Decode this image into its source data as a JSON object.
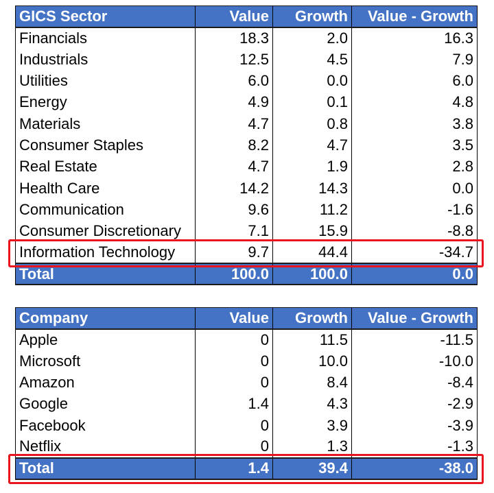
{
  "sector_table": {
    "headers": [
      "GICS Sector",
      "Value",
      "Growth",
      "Value - Growth"
    ],
    "rows": [
      [
        "Financials",
        "18.3",
        "2.0",
        "16.3"
      ],
      [
        "Industrials",
        "12.5",
        "4.5",
        "7.9"
      ],
      [
        "Utilities",
        "6.0",
        "0.0",
        "6.0"
      ],
      [
        "Energy",
        "4.9",
        "0.1",
        "4.8"
      ],
      [
        "Materials",
        "4.7",
        "0.8",
        "3.8"
      ],
      [
        "Consumer Staples",
        "8.2",
        "4.7",
        "3.5"
      ],
      [
        "Real Estate",
        "4.7",
        "1.9",
        "2.8"
      ],
      [
        "Health Care",
        "14.2",
        "14.3",
        "0.0"
      ],
      [
        "Communication",
        "9.6",
        "11.2",
        "-1.6"
      ],
      [
        "Consumer Discretionary",
        "7.1",
        "15.9",
        "-8.8"
      ],
      [
        "Information Technology",
        "9.7",
        "44.4",
        "-34.7"
      ]
    ],
    "total": [
      "Total",
      "100.0",
      "100.0",
      "0.0"
    ]
  },
  "company_table": {
    "headers": [
      "Company",
      "Value",
      "Growth",
      "Value - Growth"
    ],
    "rows": [
      [
        "Apple",
        "0",
        "11.5",
        "-11.5"
      ],
      [
        "Microsoft",
        "0",
        "10.0",
        "-10.0"
      ],
      [
        "Amazon",
        "0",
        "8.4",
        "-8.4"
      ],
      [
        "Google",
        "1.4",
        "4.3",
        "-2.9"
      ],
      [
        "Facebook",
        "0",
        "3.9",
        "-3.9"
      ],
      [
        "Netflix",
        "0",
        "1.3",
        "-1.3"
      ]
    ],
    "total": [
      "Total",
      "1.4",
      "39.4",
      "-38.0"
    ]
  },
  "colors": {
    "header_fill": "#4472c4",
    "header_text": "#ffffff",
    "highlight_border": "#e8141e"
  }
}
